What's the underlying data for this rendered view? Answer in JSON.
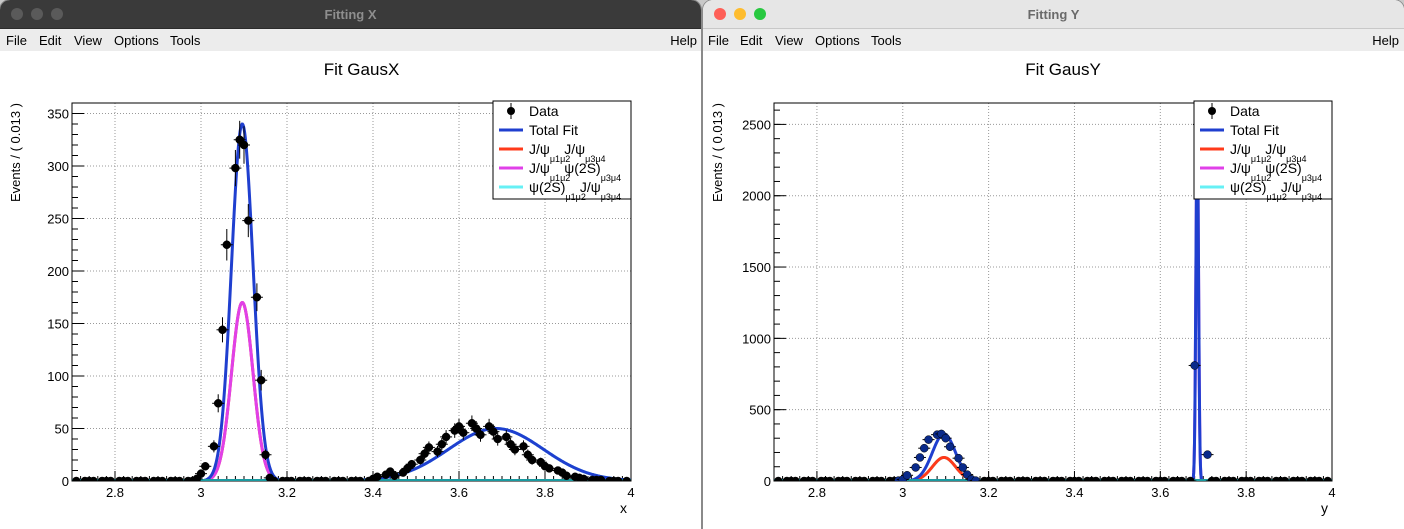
{
  "windows": [
    {
      "title": "Fitting X",
      "active": false,
      "menu": [
        "File",
        "Edit",
        "View",
        "Options",
        "Tools"
      ],
      "help": "Help",
      "plot_title": "Fit GausX",
      "ylabel": "Events / ( 0.013 )",
      "xlabel": "x"
    },
    {
      "title": "Fitting Y",
      "active": true,
      "menu": [
        "File",
        "Edit",
        "View",
        "Options",
        "Tools"
      ],
      "help": "Help",
      "plot_title": "Fit GausY",
      "ylabel": "Events / ( 0.013 )",
      "xlabel": "y"
    }
  ],
  "legend": [
    {
      "label": "Data",
      "color": "#000000",
      "marker": "point"
    },
    {
      "label": "Total Fit",
      "color": "#1f3fcf",
      "marker": "line"
    },
    {
      "label": "J/ψ",
      "sub1": "μ1μ2",
      "label2": "J/ψ",
      "sub2": "μ3μ4",
      "color": "#ff3a1a",
      "marker": "line"
    },
    {
      "label": "J/ψ",
      "sub1": "μ1μ2",
      "label2": "ψ(2S)",
      "sub2": "μ3μ4",
      "color": "#e040e8",
      "marker": "line"
    },
    {
      "label": "ψ(2S)",
      "sub1": "μ1μ2",
      "label2": "J/ψ",
      "sub2": "μ3μ4",
      "color": "#66f0f5",
      "marker": "line"
    }
  ],
  "chart_data": [
    {
      "type": "line",
      "title": "Fit GausX",
      "xlabel": "x",
      "ylabel": "Events / ( 0.013 )",
      "xlim": [
        2.7,
        4.0
      ],
      "ylim": [
        0,
        360
      ],
      "xticks": [
        "2.8",
        "3",
        "3.2",
        "3.4",
        "3.6",
        "3.8",
        "4"
      ],
      "yticks": [
        "0",
        "50",
        "100",
        "150",
        "200",
        "250",
        "300",
        "350"
      ],
      "grid": true,
      "legend_position": "top-right",
      "data_points": {
        "x": [
          2.71,
          2.73,
          2.74,
          2.75,
          2.77,
          2.78,
          2.79,
          2.81,
          2.82,
          2.83,
          2.85,
          2.86,
          2.87,
          2.89,
          2.9,
          2.91,
          2.93,
          2.94,
          2.95,
          2.97,
          2.98,
          2.99,
          3.0,
          3.01,
          3.03,
          3.04,
          3.05,
          3.06,
          3.08,
          3.09,
          3.1,
          3.11,
          3.13,
          3.14,
          3.15,
          3.16,
          3.17,
          3.19,
          3.2,
          3.21,
          3.23,
          3.24,
          3.25,
          3.27,
          3.28,
          3.29,
          3.31,
          3.32,
          3.33,
          3.35,
          3.36,
          3.37,
          3.39,
          3.4,
          3.41,
          3.43,
          3.44,
          3.45,
          3.47,
          3.48,
          3.49,
          3.51,
          3.52,
          3.53,
          3.55,
          3.56,
          3.57,
          3.59,
          3.6,
          3.61,
          3.63,
          3.64,
          3.65,
          3.67,
          3.68,
          3.69,
          3.71,
          3.72,
          3.73,
          3.75,
          3.76,
          3.77,
          3.79,
          3.8,
          3.81,
          3.83,
          3.84,
          3.85,
          3.87,
          3.88,
          3.89,
          3.91,
          3.92,
          3.93,
          3.95,
          3.96,
          3.97,
          3.99
        ],
        "y": [
          0,
          0,
          0,
          0,
          0,
          0,
          0,
          0,
          0,
          0,
          0,
          0,
          0,
          0,
          0,
          0,
          0,
          0,
          0,
          0,
          0,
          2,
          7,
          14,
          33,
          74,
          144,
          225,
          298,
          325,
          320,
          248,
          175,
          96,
          25,
          3,
          0,
          0,
          0,
          0,
          0,
          0,
          0,
          0,
          0,
          0,
          0,
          0,
          0,
          0,
          0,
          0,
          0,
          2,
          4,
          6,
          9,
          5,
          8,
          12,
          16,
          20,
          26,
          32,
          28,
          35,
          42,
          48,
          52,
          46,
          55,
          50,
          44,
          52,
          47,
          40,
          42,
          35,
          30,
          33,
          25,
          20,
          18,
          14,
          12,
          10,
          8,
          5,
          4,
          3,
          2,
          1,
          1,
          1,
          0,
          0,
          0,
          0
        ]
      },
      "series": [
        {
          "name": "Total Fit",
          "peak_x": [
            3.096,
            3.686
          ],
          "peak_y": [
            340,
            50
          ],
          "sigma": [
            0.025,
            0.11
          ]
        },
        {
          "name": "J/ψ J/ψ",
          "peak_x": [
            3.096
          ],
          "peak_y": [
            170
          ],
          "sigma": [
            0.025
          ]
        },
        {
          "name": "J/ψ ψ(2S)",
          "peak_x": [
            3.096
          ],
          "peak_y": [
            170
          ],
          "sigma": [
            0.025
          ]
        },
        {
          "name": "ψ(2S) J/ψ",
          "peak_x": [
            3.686
          ],
          "peak_y": [
            50
          ],
          "sigma": [
            0.11
          ]
        }
      ]
    },
    {
      "type": "line",
      "title": "Fit GausY",
      "xlabel": "y",
      "ylabel": "Events / ( 0.013 )",
      "xlim": [
        2.7,
        4.0
      ],
      "ylim": [
        0,
        2650
      ],
      "xticks": [
        "2.8",
        "3",
        "3.2",
        "3.4",
        "3.6",
        "3.8",
        "4"
      ],
      "yticks": [
        "0",
        "500",
        "1000",
        "1500",
        "2000",
        "2500"
      ],
      "grid": true,
      "legend_position": "top-right",
      "data_points": {
        "x": [
          2.71,
          2.73,
          2.74,
          2.75,
          2.77,
          2.78,
          2.79,
          2.81,
          2.82,
          2.83,
          2.85,
          2.86,
          2.87,
          2.89,
          2.9,
          2.91,
          2.93,
          2.94,
          2.95,
          2.97,
          2.98,
          2.99,
          3.0,
          3.01,
          3.03,
          3.04,
          3.05,
          3.06,
          3.08,
          3.09,
          3.1,
          3.11,
          3.13,
          3.14,
          3.15,
          3.16,
          3.17,
          3.19,
          3.2,
          3.21,
          3.23,
          3.24,
          3.25,
          3.27,
          3.28,
          3.29,
          3.31,
          3.32,
          3.33,
          3.35,
          3.36,
          3.37,
          3.39,
          3.4,
          3.41,
          3.43,
          3.44,
          3.45,
          3.47,
          3.48,
          3.49,
          3.51,
          3.52,
          3.53,
          3.55,
          3.56,
          3.57,
          3.59,
          3.6,
          3.61,
          3.63,
          3.64,
          3.65,
          3.67,
          3.68,
          3.69,
          3.71,
          3.72,
          3.73,
          3.75,
          3.76,
          3.77,
          3.79,
          3.8,
          3.81,
          3.83,
          3.84,
          3.85,
          3.87,
          3.88,
          3.89,
          3.91,
          3.92,
          3.93,
          3.95,
          3.96,
          3.97,
          3.99
        ],
        "y": [
          0,
          0,
          0,
          0,
          0,
          0,
          0,
          0,
          0,
          0,
          0,
          0,
          0,
          0,
          0,
          0,
          0,
          0,
          0,
          0,
          0,
          3,
          10,
          40,
          95,
          165,
          230,
          290,
          325,
          330,
          300,
          240,
          160,
          95,
          45,
          12,
          3,
          0,
          0,
          0,
          0,
          0,
          0,
          0,
          0,
          0,
          0,
          0,
          0,
          0,
          0,
          0,
          0,
          0,
          0,
          0,
          0,
          0,
          0,
          0,
          0,
          0,
          0,
          0,
          0,
          0,
          0,
          0,
          0,
          0,
          0,
          0,
          0,
          0,
          810,
          2500,
          185,
          0,
          0,
          0,
          0,
          0,
          0,
          0,
          0,
          0,
          0,
          0,
          0,
          0,
          0,
          0,
          0,
          0,
          0,
          0,
          0,
          0
        ]
      },
      "series": [
        {
          "name": "Total Fit",
          "peak_x": [
            3.096,
            3.686
          ],
          "peak_y": [
            330,
            2500
          ],
          "sigma": [
            0.027,
            0.003
          ]
        },
        {
          "name": "J/ψ J/ψ",
          "peak_x": [
            3.096
          ],
          "peak_y": [
            165
          ],
          "sigma": [
            0.027
          ]
        },
        {
          "name": "J/ψ ψ(2S)",
          "peak_x": [
            3.686
          ],
          "peak_y": [
            2500
          ],
          "sigma": [
            0.003
          ]
        },
        {
          "name": "ψ(2S) J/ψ",
          "peak_x": [
            3.096
          ],
          "peak_y": [
            165
          ],
          "sigma": [
            0.027
          ]
        }
      ]
    }
  ]
}
